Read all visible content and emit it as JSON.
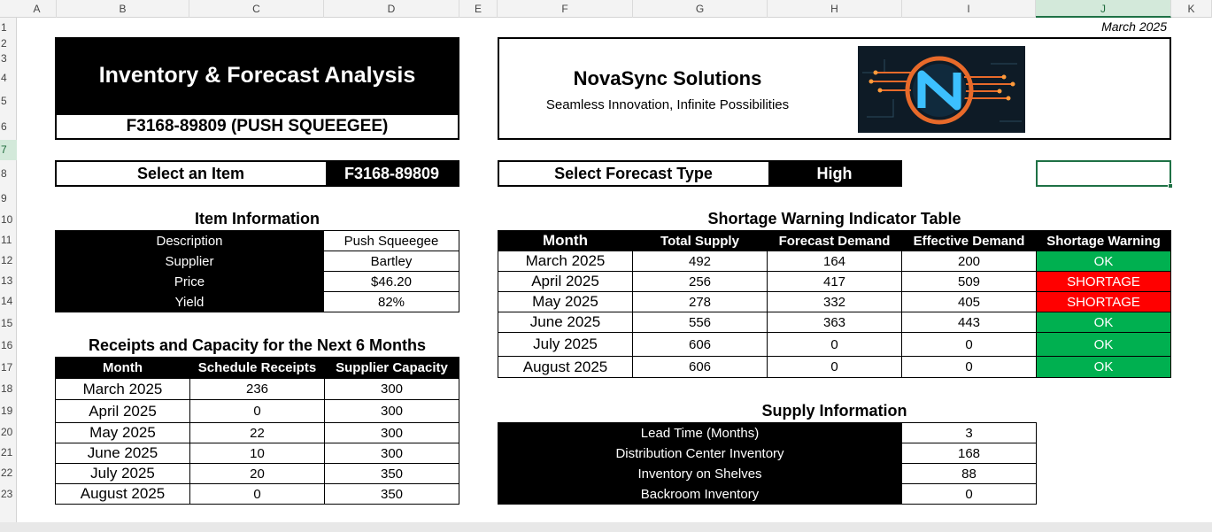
{
  "columns": [
    "A",
    "B",
    "C",
    "D",
    "E",
    "F",
    "G",
    "H",
    "I",
    "J",
    "K"
  ],
  "rows": [
    "1",
    "2",
    "3",
    "4",
    "5",
    "6",
    "7",
    "8",
    "9",
    "10",
    "11",
    "12",
    "13",
    "14",
    "15",
    "16",
    "17",
    "18",
    "19",
    "20",
    "21",
    "22",
    "23"
  ],
  "date_label": "March 2025",
  "header": {
    "title": "Inventory & Forecast Analysis",
    "item_subtitle": "F3168-89809 (PUSH SQUEEGEE)"
  },
  "company": {
    "name": "NovaSync Solutions",
    "tagline": "Seamless Innovation, Infinite Possibilities"
  },
  "select_item": {
    "label": "Select an Item",
    "value": "F3168-89809"
  },
  "select_forecast": {
    "label": "Select Forecast Type",
    "value": "High"
  },
  "item_info": {
    "title": "Item Information",
    "rows": [
      {
        "label": "Description",
        "value": "Push Squeegee"
      },
      {
        "label": "Supplier",
        "value": "Bartley"
      },
      {
        "label": "Price",
        "value": "$46.20"
      },
      {
        "label": "Yield",
        "value": "82%"
      }
    ]
  },
  "receipts": {
    "title": "Receipts  and Capacity for the Next 6 Months",
    "headers": [
      "Month",
      "Schedule Receipts",
      "Supplier Capacity"
    ],
    "rows": [
      [
        "March 2025",
        "236",
        "300"
      ],
      [
        "April 2025",
        "0",
        "300"
      ],
      [
        "May 2025",
        "22",
        "300"
      ],
      [
        "June 2025",
        "10",
        "300"
      ],
      [
        "July 2025",
        "20",
        "350"
      ],
      [
        "August 2025",
        "0",
        "350"
      ]
    ]
  },
  "shortage": {
    "title": "Shortage Warning Indicator Table",
    "headers": [
      "Month",
      "Total Supply",
      "Forecast Demand",
      "Effective Demand",
      "Shortage Warning"
    ],
    "rows": [
      [
        "March 2025",
        "492",
        "164",
        "200",
        "OK"
      ],
      [
        "April 2025",
        "256",
        "417",
        "509",
        "SHORTAGE"
      ],
      [
        "May 2025",
        "278",
        "332",
        "405",
        "SHORTAGE"
      ],
      [
        "June 2025",
        "556",
        "363",
        "443",
        "OK"
      ],
      [
        "July 2025",
        "606",
        "0",
        "0",
        "OK"
      ],
      [
        "August 2025",
        "606",
        "0",
        "0",
        "OK"
      ]
    ]
  },
  "supply_info": {
    "title": "Supply Information",
    "rows": [
      {
        "label": "Lead Time (Months)",
        "value": "3"
      },
      {
        "label": "Distribution Center Inventory",
        "value": "168"
      },
      {
        "label": "Inventory on Shelves",
        "value": "88"
      },
      {
        "label": "Backroom Inventory",
        "value": "0"
      }
    ]
  },
  "colors": {
    "ok": "#00b050",
    "shortage": "#ff0000",
    "selection": "#1e7145"
  },
  "logo_icon": "novasync-logo-icon"
}
